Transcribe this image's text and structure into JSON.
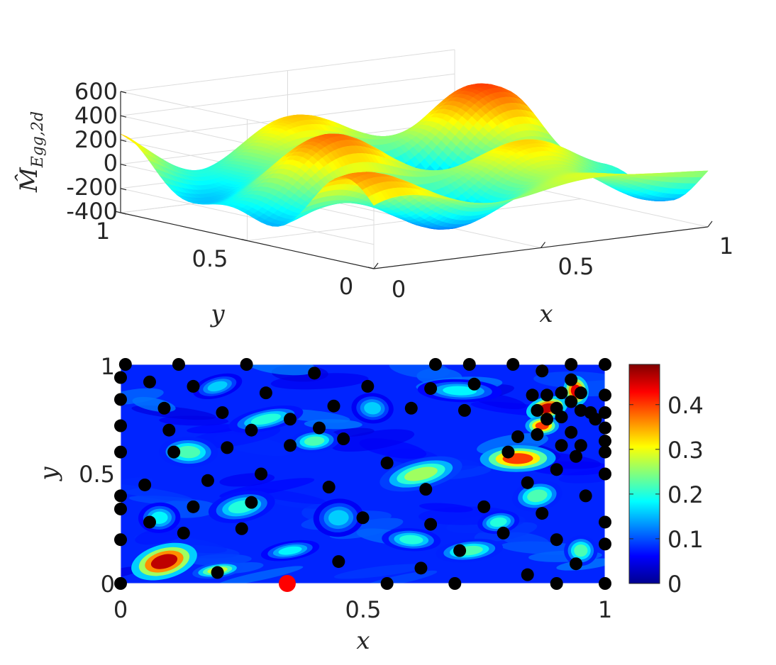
{
  "colors": {
    "axis": "#262626",
    "grid": "#dcdcdc",
    "point": "#000000",
    "highlight": "#ff0000",
    "jet": [
      "#00008f",
      "#0000ff",
      "#00ffff",
      "#ffff00",
      "#ff0000",
      "#800000"
    ]
  },
  "chart_data": [
    {
      "type": "surface3d",
      "title": "",
      "zlabel": "M̂_{Egg,2d}",
      "zlabel_main": "M̂",
      "zlabel_sub": "Egg,2d",
      "xlabel": "x",
      "ylabel": "y",
      "xlim": [
        0,
        1
      ],
      "ylim": [
        0,
        1
      ],
      "zlim": [
        -400,
        600
      ],
      "xticks": [
        0,
        0.5,
        1
      ],
      "yticks": [
        0,
        0.5,
        1
      ],
      "zticks": [
        -400,
        -200,
        0,
        200,
        400,
        600
      ],
      "xtick_labels": [
        "0",
        "0.5",
        "1"
      ],
      "ytick_labels": [
        "0",
        "0.5",
        "1"
      ],
      "ztick_labels": [
        "-400",
        "-200",
        "0",
        "200",
        "400",
        "600"
      ],
      "colormap": "jet"
    },
    {
      "type": "heatmap",
      "xlabel": "x",
      "ylabel": "y",
      "xlim": [
        0,
        1
      ],
      "ylim": [
        0,
        1
      ],
      "xticks": [
        0,
        0.5,
        1
      ],
      "yticks": [
        0,
        0.5,
        1
      ],
      "xtick_labels": [
        "0",
        "0.5",
        "1"
      ],
      "ytick_labels": [
        "0",
        "0.5",
        "1"
      ],
      "colorbar": {
        "range": [
          0,
          0.49
        ],
        "ticks": [
          0,
          0.1,
          0.2,
          0.3,
          0.4
        ],
        "tick_labels": [
          "0",
          "0.1",
          "0.2",
          "0.3",
          "0.4"
        ]
      },
      "blobs": [
        {
          "x": 0.09,
          "y": 0.1,
          "a": 0.46,
          "rx": 0.08,
          "ry": 0.045
        },
        {
          "x": 0.2,
          "y": 0.06,
          "a": 0.28,
          "rx": 0.06,
          "ry": 0.02
        },
        {
          "x": 0.82,
          "y": 0.57,
          "a": 0.4,
          "rx": 0.09,
          "ry": 0.035
        },
        {
          "x": 0.88,
          "y": 0.8,
          "a": 0.46,
          "rx": 0.05,
          "ry": 0.03
        },
        {
          "x": 0.94,
          "y": 0.88,
          "a": 0.44,
          "rx": 0.03,
          "ry": 0.04
        },
        {
          "x": 0.87,
          "y": 0.72,
          "a": 0.4,
          "rx": 0.04,
          "ry": 0.025
        },
        {
          "x": 0.62,
          "y": 0.5,
          "a": 0.26,
          "rx": 0.1,
          "ry": 0.04
        },
        {
          "x": 0.72,
          "y": 0.15,
          "a": 0.22,
          "rx": 0.08,
          "ry": 0.03
        },
        {
          "x": 0.14,
          "y": 0.6,
          "a": 0.22,
          "rx": 0.07,
          "ry": 0.04
        },
        {
          "x": 0.3,
          "y": 0.75,
          "a": 0.2,
          "rx": 0.09,
          "ry": 0.03
        },
        {
          "x": 0.4,
          "y": 0.65,
          "a": 0.22,
          "rx": 0.06,
          "ry": 0.03
        },
        {
          "x": 0.7,
          "y": 0.88,
          "a": 0.18,
          "rx": 0.1,
          "ry": 0.03
        },
        {
          "x": 0.25,
          "y": 0.35,
          "a": 0.2,
          "rx": 0.08,
          "ry": 0.04
        },
        {
          "x": 0.45,
          "y": 0.3,
          "a": 0.16,
          "rx": 0.06,
          "ry": 0.05
        },
        {
          "x": 0.6,
          "y": 0.2,
          "a": 0.2,
          "rx": 0.07,
          "ry": 0.03
        },
        {
          "x": 0.86,
          "y": 0.4,
          "a": 0.22,
          "rx": 0.06,
          "ry": 0.04
        },
        {
          "x": 0.08,
          "y": 0.3,
          "a": 0.18,
          "rx": 0.05,
          "ry": 0.04
        },
        {
          "x": 0.52,
          "y": 0.8,
          "a": 0.16,
          "rx": 0.05,
          "ry": 0.04
        },
        {
          "x": 0.35,
          "y": 0.15,
          "a": 0.18,
          "rx": 0.07,
          "ry": 0.025
        },
        {
          "x": 0.95,
          "y": 0.15,
          "a": 0.22,
          "rx": 0.04,
          "ry": 0.04
        },
        {
          "x": 0.2,
          "y": 0.9,
          "a": 0.16,
          "rx": 0.06,
          "ry": 0.03
        },
        {
          "x": 0.78,
          "y": 0.28,
          "a": 0.2,
          "rx": 0.05,
          "ry": 0.03
        }
      ],
      "points": [
        [
          0.01,
          1.0
        ],
        [
          0.12,
          1.0
        ],
        [
          0.26,
          1.0
        ],
        [
          0.65,
          1.0
        ],
        [
          0.72,
          1.0
        ],
        [
          0.81,
          1.0
        ],
        [
          0.93,
          1.0
        ],
        [
          1.0,
          1.0
        ],
        [
          0.0,
          0.94
        ],
        [
          0.06,
          0.92
        ],
        [
          0.15,
          0.9
        ],
        [
          0.4,
          0.96
        ],
        [
          0.51,
          0.9
        ],
        [
          0.64,
          0.89
        ],
        [
          0.73,
          0.91
        ],
        [
          0.87,
          0.97
        ],
        [
          0.93,
          0.93
        ],
        [
          0.0,
          0.84
        ],
        [
          0.09,
          0.8
        ],
        [
          0.21,
          0.78
        ],
        [
          0.3,
          0.87
        ],
        [
          0.44,
          0.81
        ],
        [
          0.6,
          0.8
        ],
        [
          0.71,
          0.79
        ],
        [
          0.85,
          0.86
        ],
        [
          0.88,
          0.86
        ],
        [
          0.91,
          0.87
        ],
        [
          0.95,
          0.87
        ],
        [
          1.0,
          0.86
        ],
        [
          0.86,
          0.79
        ],
        [
          0.9,
          0.8
        ],
        [
          0.93,
          0.83
        ],
        [
          0.95,
          0.79
        ],
        [
          0.97,
          0.78
        ],
        [
          0.88,
          0.75
        ],
        [
          0.91,
          0.76
        ],
        [
          0.98,
          0.75
        ],
        [
          1.0,
          0.78
        ],
        [
          0.0,
          0.72
        ],
        [
          0.1,
          0.7
        ],
        [
          0.27,
          0.7
        ],
        [
          0.35,
          0.75
        ],
        [
          0.41,
          0.71
        ],
        [
          0.46,
          0.66
        ],
        [
          0.82,
          0.67
        ],
        [
          0.86,
          0.68
        ],
        [
          0.93,
          0.69
        ],
        [
          0.95,
          0.63
        ],
        [
          1.0,
          0.71
        ],
        [
          0.0,
          0.6
        ],
        [
          0.11,
          0.6
        ],
        [
          0.22,
          0.62
        ],
        [
          0.35,
          0.63
        ],
        [
          0.8,
          0.6
        ],
        [
          0.91,
          0.63
        ],
        [
          0.94,
          0.58
        ],
        [
          1.0,
          0.65
        ],
        [
          1.0,
          0.6
        ],
        [
          0.29,
          0.5
        ],
        [
          0.55,
          0.55
        ],
        [
          0.9,
          0.52
        ],
        [
          1.0,
          0.5
        ],
        [
          0.0,
          0.4
        ],
        [
          0.05,
          0.45
        ],
        [
          0.18,
          0.47
        ],
        [
          0.43,
          0.44
        ],
        [
          0.63,
          0.43
        ],
        [
          0.84,
          0.46
        ],
        [
          0.96,
          0.4
        ],
        [
          0.0,
          0.34
        ],
        [
          0.15,
          0.35
        ],
        [
          0.27,
          0.37
        ],
        [
          0.5,
          0.3
        ],
        [
          0.75,
          0.35
        ],
        [
          0.87,
          0.32
        ],
        [
          0.06,
          0.28
        ],
        [
          0.13,
          0.23
        ],
        [
          0.25,
          0.25
        ],
        [
          0.64,
          0.27
        ],
        [
          0.79,
          0.23
        ],
        [
          1.0,
          0.28
        ],
        [
          0.0,
          0.2
        ],
        [
          0.7,
          0.15
        ],
        [
          0.9,
          0.2
        ],
        [
          1.0,
          0.18
        ],
        [
          0.45,
          0.1
        ],
        [
          0.62,
          0.07
        ],
        [
          0.2,
          0.05
        ],
        [
          0.84,
          0.04
        ],
        [
          0.94,
          0.09
        ],
        [
          0.0,
          0.0
        ],
        [
          0.55,
          0.0
        ],
        [
          0.69,
          0.0
        ],
        [
          0.9,
          0.0
        ],
        [
          1.0,
          0.0
        ]
      ],
      "highlight_point": [
        0.344,
        0.0
      ]
    }
  ]
}
